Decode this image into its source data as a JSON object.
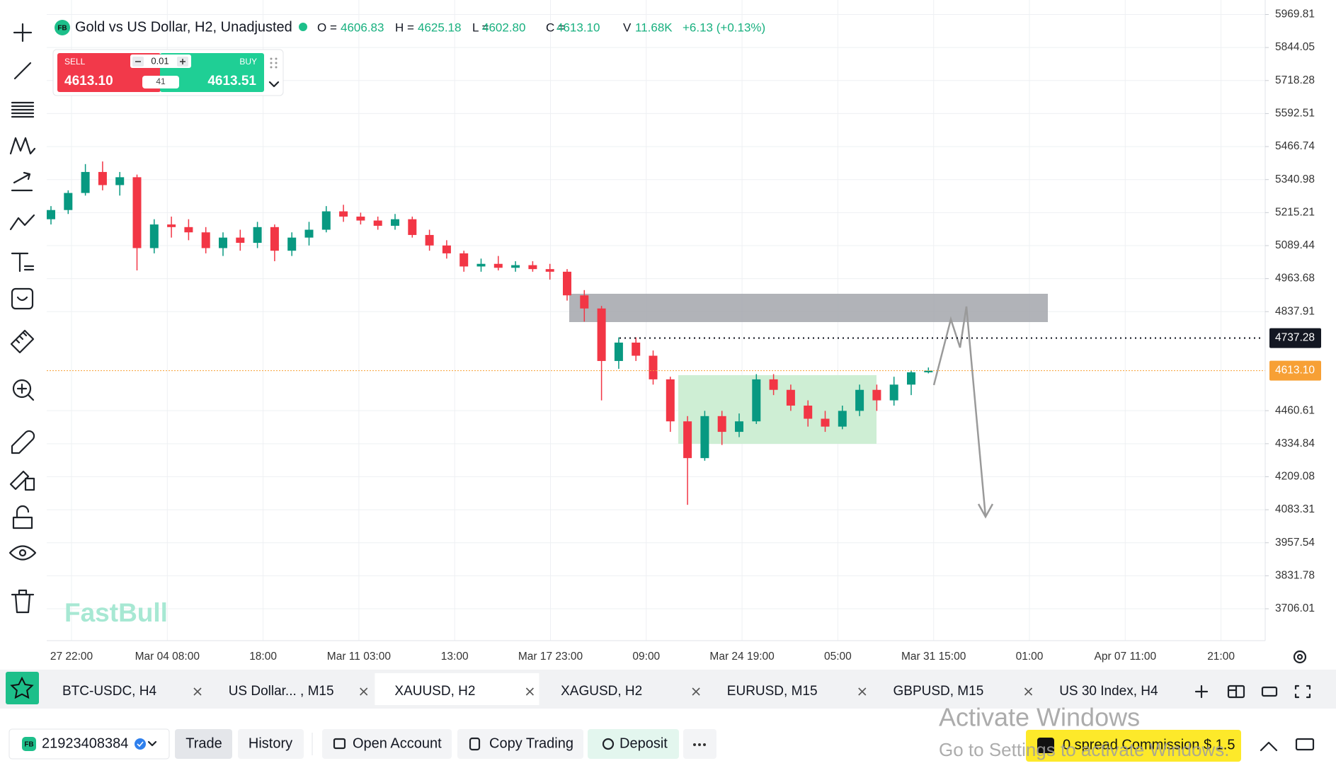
{
  "header": {
    "badge": "FB",
    "title": "Gold vs US Dollar, H2, Unadjusted",
    "ohlc": [
      {
        "label": "O =",
        "value": "4606.83"
      },
      {
        "label": "H =",
        "value": "4625.18"
      },
      {
        "label": "L =",
        "value": "4602.80"
      },
      {
        "label": "C =",
        "value": "4613.10"
      },
      {
        "label": "V",
        "value": "11.68K"
      }
    ],
    "change": "+6.13 (+0.13%)"
  },
  "trade_widget": {
    "sell_label": "SELL",
    "sell_price": "4613.10",
    "buy_label": "BUY",
    "buy_price": "4613.51",
    "lot": "0.01",
    "spread": "41"
  },
  "watermark": "FastBull",
  "chart_data": {
    "type": "candlestick",
    "open": [
      5190,
      5225,
      5290,
      5370,
      5320,
      5350,
      5080,
      5170,
      5160,
      5140,
      5080,
      5120,
      5100,
      5160,
      5070,
      5120,
      5150,
      5220,
      5200,
      5185,
      5165,
      5190,
      5130,
      5090,
      5060,
      5010,
      5020,
      5005,
      5015,
      5000,
      4990,
      4900,
      4850,
      4650,
      4720,
      4670,
      4580,
      4420,
      4280,
      4440,
      4380,
      4420,
      4580,
      4540,
      4480,
      4430,
      4400,
      4460,
      4540,
      4500,
      4560,
      4606.83
    ],
    "high": [
      5240,
      5300,
      5400,
      5410,
      5370,
      5360,
      5190,
      5200,
      5190,
      5160,
      5140,
      5150,
      5180,
      5170,
      5140,
      5180,
      5240,
      5245,
      5215,
      5200,
      5210,
      5200,
      5150,
      5110,
      5070,
      5040,
      5050,
      5030,
      5030,
      5020,
      5000,
      4920,
      4860,
      4740,
      4740,
      4690,
      4590,
      4440,
      4460,
      4460,
      4450,
      4600,
      4600,
      4560,
      4500,
      4460,
      4480,
      4560,
      4560,
      4590,
      4615,
      4625.18
    ],
    "low": [
      5170,
      5210,
      5280,
      5300,
      5280,
      4995,
      5060,
      5120,
      5110,
      5060,
      5050,
      5070,
      5080,
      5030,
      5050,
      5090,
      5140,
      5180,
      5170,
      5150,
      5150,
      5120,
      5070,
      5040,
      4990,
      4990,
      4995,
      4990,
      4990,
      4960,
      4880,
      4800,
      4500,
      4620,
      4650,
      4560,
      4380,
      4102,
      4270,
      4330,
      4360,
      4410,
      4520,
      4460,
      4400,
      4380,
      4390,
      4440,
      4460,
      4480,
      4520,
      4602.8
    ],
    "close": [
      5225,
      5290,
      5370,
      5320,
      5350,
      5080,
      5170,
      5160,
      5140,
      5080,
      5120,
      5100,
      5160,
      5070,
      5120,
      5150,
      5220,
      5200,
      5185,
      5165,
      5190,
      5130,
      5090,
      5060,
      5010,
      5020,
      5005,
      5015,
      5000,
      4990,
      4900,
      4850,
      4650,
      4720,
      4670,
      4580,
      4420,
      4280,
      4440,
      4380,
      4420,
      4580,
      4540,
      4480,
      4430,
      4400,
      4460,
      4540,
      4500,
      4560,
      4606.83,
      4613.1
    ],
    "up_color": "#089981",
    "down_color": "#f23645",
    "ylim": [
      3584.7,
      6025.1
    ],
    "yticks": [
      5969.81,
      5844.05,
      5718.28,
      5592.51,
      5466.74,
      5340.98,
      5215.21,
      5089.44,
      4963.68,
      4837.91,
      4460.61,
      4334.84,
      4209.08,
      4083.31,
      3957.54,
      3831.78,
      3706.01
    ],
    "xtick_labels": [
      "27 22:00",
      "Mar 04 08:00",
      "18:00",
      "Mar 11 03:00",
      "13:00",
      "Mar 17 23:00",
      "09:00",
      "Mar 24 19:00",
      "05:00",
      "Mar 31 15:00",
      "01:00",
      "Apr 07 11:00",
      "21:00"
    ],
    "grid": true,
    "price_lines": [
      {
        "value": 4737.28,
        "color": "#131722"
      }
    ],
    "last_price": {
      "value": 4613.1,
      "label": "4613.10",
      "color": "#f7a035"
    }
  },
  "tabs": [
    {
      "label": "BTC-USDC, H4"
    },
    {
      "label": "US Dollar... , M15"
    },
    {
      "label": "XAUUSD, H2",
      "active": true
    },
    {
      "label": "XAGUSD, H2"
    },
    {
      "label": "EURUSD, M15"
    },
    {
      "label": "GBPUSD, M15"
    },
    {
      "label": "US 30 Index, H4"
    }
  ],
  "account": {
    "badge": "FB",
    "number": "21923408384"
  },
  "nav": [
    "Trade",
    "History"
  ],
  "actions": [
    "Open Account",
    "Copy Trading",
    "Deposit"
  ],
  "promo": "0 spread Commission $ 1.5",
  "os_notice": {
    "title": "Activate Windows",
    "text": "Go to Settings to activate Windows."
  }
}
